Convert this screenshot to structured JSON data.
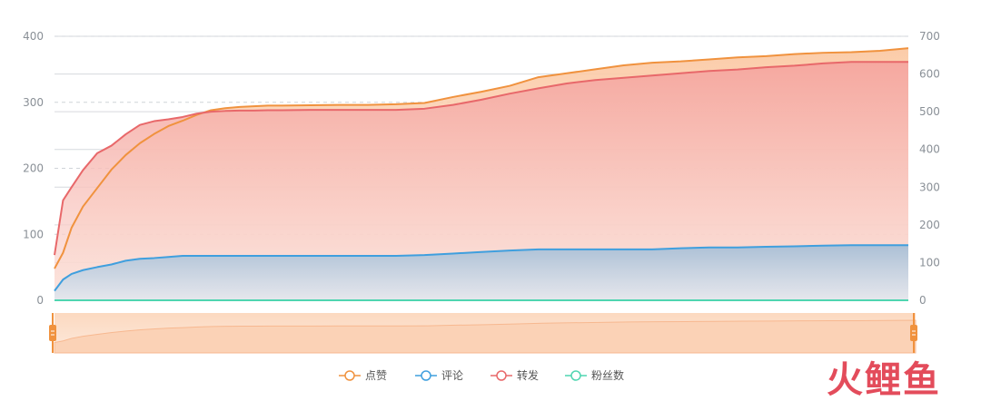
{
  "chart_data": {
    "type": "area",
    "grid": true,
    "legend_placement": "bottom",
    "has_zoom_slider": true,
    "x_axis_labels_visible": false,
    "left_axis": {
      "ylim": [
        0,
        400
      ],
      "ticks": [
        0,
        100,
        200,
        300,
        400
      ]
    },
    "right_axis": {
      "ylim": [
        0,
        700
      ],
      "ticks": [
        0,
        100,
        200,
        300,
        400,
        500,
        600,
        700
      ]
    },
    "x": [
      0,
      3,
      6,
      10,
      15,
      20,
      25,
      30,
      35,
      40,
      45,
      50,
      55,
      60,
      65,
      70,
      75,
      80,
      90,
      100,
      110,
      120,
      130,
      140,
      150,
      160,
      170,
      180,
      190,
      200,
      210,
      220,
      230,
      240,
      250,
      260,
      270,
      280,
      290,
      300
    ],
    "series": [
      {
        "name": "点赞",
        "axis": "left",
        "color": "#f0923e",
        "area": true,
        "values": [
          48,
          72,
          110,
          142,
          170,
          198,
          220,
          238,
          252,
          264,
          272,
          281,
          288,
          291,
          293,
          294,
          295,
          295,
          295.5,
          296,
          296,
          297,
          299,
          308,
          316,
          325,
          338,
          344,
          350,
          356,
          360,
          362,
          365,
          368,
          370,
          373,
          375,
          376,
          378,
          382
        ]
      },
      {
        "name": "评论",
        "axis": "right",
        "color": "#3f9fde",
        "area": true,
        "values": [
          25,
          55,
          70,
          80,
          88,
          95,
          105,
          110,
          112,
          115,
          118,
          118,
          118,
          118,
          118,
          118,
          118,
          118,
          118,
          118,
          118,
          118,
          120,
          124,
          128,
          132,
          135,
          135,
          135,
          135,
          135,
          138,
          140,
          140,
          142,
          143,
          145,
          146,
          146,
          146
        ]
      },
      {
        "name": "转发",
        "axis": "right",
        "color": "#e8686a",
        "area": true,
        "values": [
          120,
          265,
          300,
          345,
          390,
          410,
          440,
          465,
          475,
          480,
          486,
          495,
          500,
          502,
          503,
          503,
          504,
          504,
          505,
          505,
          505,
          505,
          508,
          518,
          532,
          548,
          562,
          575,
          584,
          590,
          596,
          602,
          608,
          612,
          618,
          622,
          628,
          632,
          632,
          632
        ]
      },
      {
        "name": "粉丝数",
        "axis": "right",
        "color": "#4fd5b0",
        "area": false,
        "values": [
          0,
          0,
          0,
          0,
          0,
          0,
          0,
          0,
          0,
          0,
          0,
          0,
          0,
          0,
          0,
          0,
          0,
          0,
          0,
          0,
          0,
          0,
          0,
          0,
          0,
          0,
          0,
          0,
          0,
          0,
          0,
          0,
          0,
          0,
          0,
          0,
          0,
          0,
          0,
          0
        ]
      }
    ]
  },
  "watermark": {
    "text": "火鲤鱼",
    "color": "#e0394a"
  }
}
